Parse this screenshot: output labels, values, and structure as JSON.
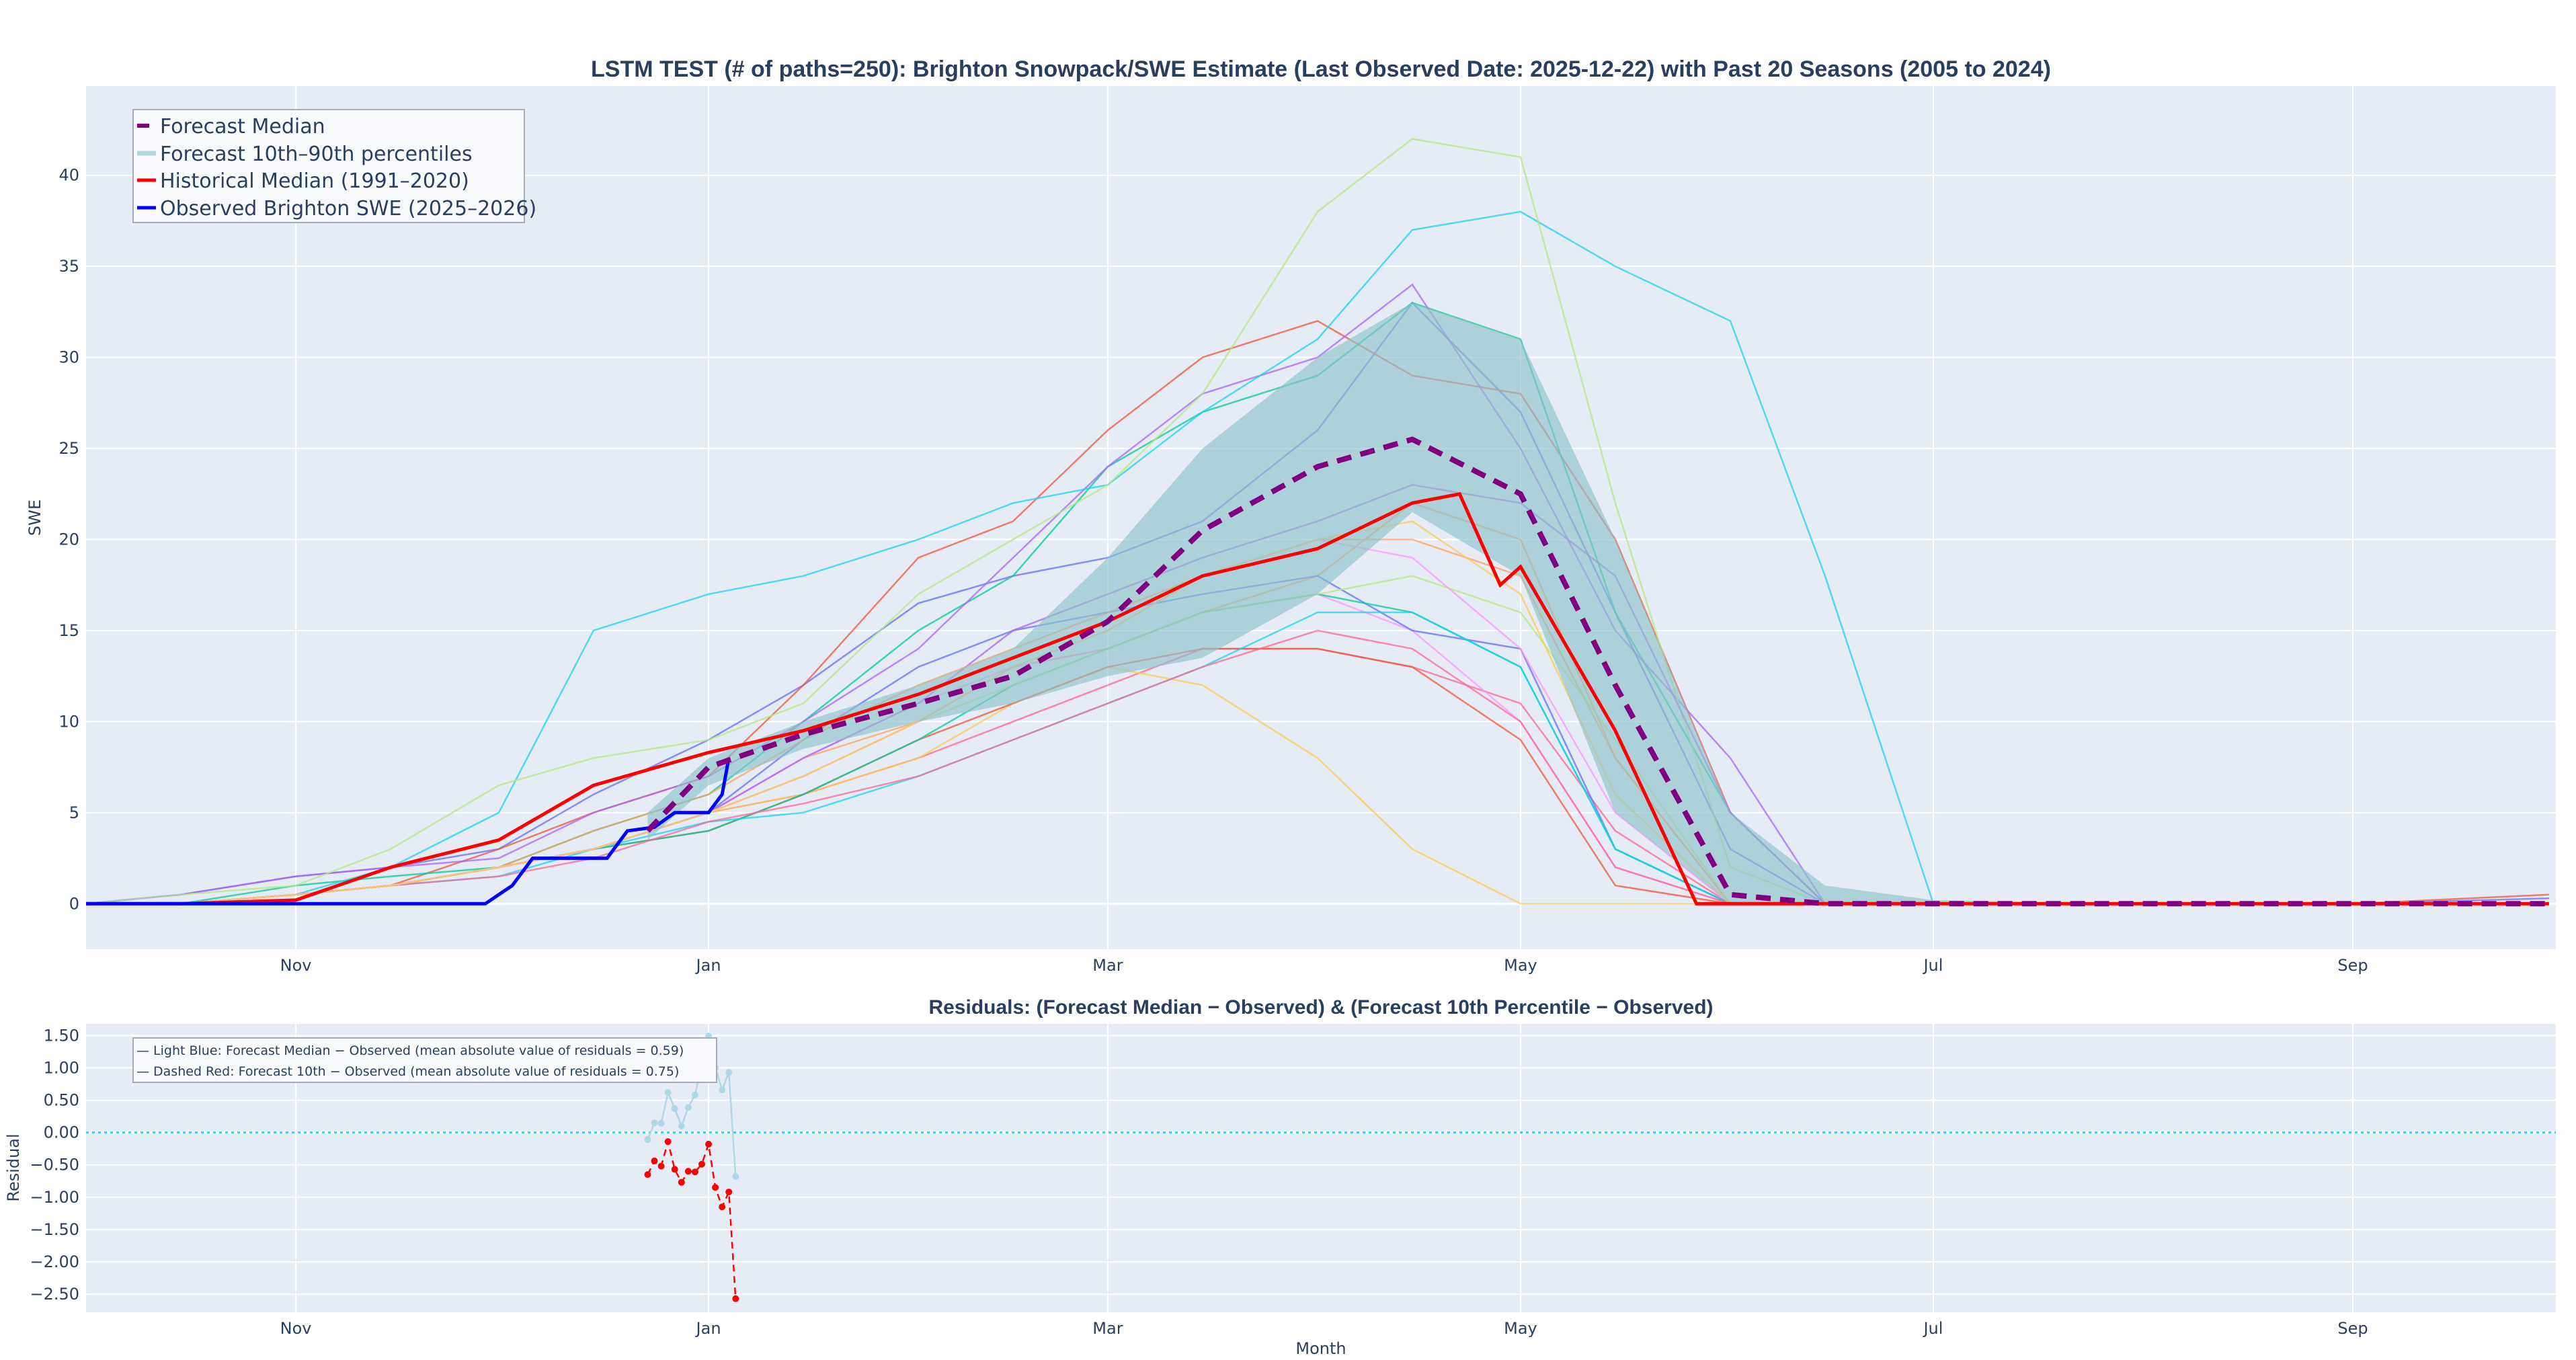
{
  "chart_data": [
    {
      "type": "line",
      "title": "LSTM TEST (# of paths=250): Brighton Snowpack/SWE Estimate (Last Observed Date: 2025-12-22) with Past 20 Seasons (2005 to 2024)",
      "xlabel": "",
      "ylabel": "SWE",
      "xlim": [
        "2025-10-01",
        "2026-10-01"
      ],
      "ylim": [
        -2.5,
        44.9
      ],
      "x_ticks": [
        {
          "date": "2025-11-01",
          "label": "Nov"
        },
        {
          "date": "2026-01-01",
          "label": "Jan"
        },
        {
          "date": "2026-03-01",
          "label": "Mar"
        },
        {
          "date": "2026-05-01",
          "label": "May"
        },
        {
          "date": "2026-07-01",
          "label": "Jul"
        },
        {
          "date": "2026-09-01",
          "label": "Sep"
        }
      ],
      "y_ticks": [
        "0",
        "5",
        "10",
        "15",
        "20",
        "25",
        "30",
        "35",
        "40"
      ],
      "y_tick_values": [
        0,
        5,
        10,
        15,
        20,
        25,
        30,
        35,
        40
      ],
      "grid": true,
      "legend_placement": "top-left",
      "legend": [
        {
          "label": "Forecast Median",
          "color": "#800080",
          "style": "dash"
        },
        {
          "label": "Forecast 10th–90th percentiles",
          "color": "#b0d8dc",
          "style": "band"
        },
        {
          "label": "Historical Median (1991–2020)",
          "color": "#ff0000",
          "style": "solid"
        },
        {
          "label": "Observed Brighton SWE (2025–2026)",
          "color": "#0000ff",
          "style": "solid"
        }
      ],
      "past_seasons_x": [
        "2025-10-01",
        "2025-10-15",
        "2025-11-01",
        "2025-11-15",
        "2025-12-01",
        "2025-12-15",
        "2026-01-01",
        "2026-01-15",
        "2026-02-01",
        "2026-02-15",
        "2026-03-01",
        "2026-03-15",
        "2026-04-01",
        "2026-04-15",
        "2026-05-01",
        "2026-05-15",
        "2026-06-01",
        "2026-06-15",
        "2026-07-01",
        "2026-08-01",
        "2026-09-01",
        "2026-09-30"
      ],
      "past_seasons": [
        {
          "color": "#636efa",
          "values": [
            0,
            0.5,
            1.5,
            2,
            3,
            6,
            9,
            12,
            16.5,
            18,
            19,
            21,
            26,
            33,
            27,
            16,
            3,
            0,
            0,
            0,
            0,
            0
          ]
        },
        {
          "color": "#EF553B",
          "values": [
            0,
            0,
            0.5,
            1,
            3,
            5,
            7,
            12,
            19,
            21,
            26,
            30,
            32,
            29,
            28,
            20,
            5,
            0,
            0,
            0,
            0,
            0.5
          ]
        },
        {
          "color": "#00cc96",
          "values": [
            0,
            0,
            1,
            1.5,
            2,
            4,
            6,
            10,
            15,
            18,
            24,
            27,
            29,
            33,
            31,
            16,
            5,
            0,
            0,
            0,
            0,
            0
          ]
        },
        {
          "color": "#ab63fa",
          "values": [
            0,
            0.5,
            1.5,
            2,
            2.5,
            5,
            7,
            10,
            14,
            19,
            24,
            28,
            30,
            34,
            25,
            15,
            8,
            0,
            0,
            0,
            0,
            0
          ]
        },
        {
          "color": "#FFA15A",
          "values": [
            0,
            0,
            0.5,
            1,
            2,
            3,
            5,
            8,
            10,
            13,
            14,
            16,
            18,
            22,
            20,
            8,
            0,
            0,
            0,
            0,
            0,
            0
          ]
        },
        {
          "color": "#19d3f3",
          "values": [
            0,
            0,
            0.5,
            2,
            5,
            15,
            17,
            18,
            20,
            22,
            23,
            27,
            31,
            37,
            38,
            35,
            32,
            18,
            0,
            0,
            0,
            0
          ]
        },
        {
          "color": "#FF6692",
          "values": [
            0,
            0,
            0.5,
            1,
            2,
            3,
            5,
            6,
            8,
            10,
            12,
            14,
            14,
            13,
            11,
            4,
            0,
            0,
            0,
            0,
            0,
            0
          ]
        },
        {
          "color": "#B6E880",
          "values": [
            0,
            0.5,
            1,
            3,
            6.5,
            8,
            9,
            11,
            17,
            20,
            23,
            28,
            38,
            42,
            41,
            22,
            2,
            0,
            0,
            0,
            0,
            0
          ]
        },
        {
          "color": "#FF97FF",
          "values": [
            0,
            0,
            0.5,
            1,
            2,
            3,
            5,
            8,
            11,
            13,
            14,
            16,
            17,
            15,
            10,
            2,
            0,
            0,
            0,
            0,
            0,
            0
          ]
        },
        {
          "color": "#FECB52",
          "values": [
            0,
            0,
            0.5,
            1,
            2,
            3,
            5,
            6,
            8,
            11,
            13,
            12,
            8,
            3,
            0,
            0,
            0,
            0,
            0,
            0,
            0,
            0
          ]
        },
        {
          "color": "#636efa",
          "values": [
            0,
            0,
            0.5,
            1,
            2,
            3,
            5,
            9,
            13,
            15,
            16,
            17,
            18,
            15,
            14,
            3,
            0,
            0,
            0,
            0,
            0,
            0.3
          ]
        },
        {
          "color": "#EF553B",
          "values": [
            0,
            0,
            0.5,
            1,
            2,
            3,
            4,
            6,
            9,
            11,
            13,
            14,
            14,
            13,
            9,
            1,
            0,
            0,
            0,
            0,
            0,
            0
          ]
        },
        {
          "color": "#00cc96",
          "values": [
            0,
            0,
            0.5,
            1,
            2,
            3,
            4,
            6,
            9,
            12,
            14,
            16,
            17,
            16,
            13,
            3,
            0,
            0,
            0,
            0,
            0,
            0
          ]
        },
        {
          "color": "#ab63fa",
          "values": [
            0,
            0,
            0.5,
            1,
            2,
            3,
            5,
            8,
            11,
            15,
            17,
            19,
            21,
            23,
            22,
            18,
            5,
            0,
            0,
            0,
            0,
            0
          ]
        },
        {
          "color": "#FFA15A",
          "values": [
            0,
            0,
            0.5,
            1,
            2,
            4,
            6,
            9,
            12,
            14,
            16,
            18,
            20,
            20,
            18,
            8,
            0,
            0,
            0,
            0,
            0,
            0
          ]
        },
        {
          "color": "#19d3f3",
          "values": [
            0,
            0,
            0.5,
            1,
            1.5,
            3,
            4.5,
            5,
            7,
            9,
            11,
            13,
            16,
            16,
            13,
            3,
            0,
            0,
            0,
            0,
            0,
            0
          ]
        },
        {
          "color": "#FF6692",
          "values": [
            0,
            0,
            0.5,
            1,
            1.5,
            2.5,
            4.5,
            5.5,
            7,
            9,
            11,
            13,
            15,
            14,
            10,
            2,
            0,
            0,
            0,
            0,
            0,
            0
          ]
        },
        {
          "color": "#B6E880",
          "values": [
            0,
            0,
            0.5,
            1,
            2,
            3,
            5,
            7,
            10,
            12,
            14,
            16,
            17,
            18,
            16,
            9,
            0,
            0,
            0,
            0,
            0,
            0
          ]
        },
        {
          "color": "#FF97FF",
          "values": [
            0,
            0,
            0.5,
            1,
            2,
            3,
            5,
            7,
            10,
            13,
            15,
            18,
            20,
            19,
            14,
            5,
            0,
            0,
            0,
            0,
            0,
            0
          ]
        },
        {
          "color": "#FECB52",
          "values": [
            0,
            0,
            0.5,
            1,
            2,
            3,
            5,
            7,
            10,
            13,
            15,
            18,
            20,
            21,
            17,
            6,
            0,
            0,
            0,
            0,
            0,
            0
          ]
        }
      ],
      "historical_median": {
        "name": "Historical Median (1991–2020)",
        "x": [
          "2025-10-01",
          "2025-10-15",
          "2025-11-01",
          "2025-11-15",
          "2025-12-01",
          "2025-12-15",
          "2026-01-01",
          "2026-01-15",
          "2026-02-01",
          "2026-02-15",
          "2026-03-01",
          "2026-03-15",
          "2026-04-01",
          "2026-04-15",
          "2026-04-22",
          "2026-04-28",
          "2026-05-01",
          "2026-05-15",
          "2026-05-27",
          "2026-06-15",
          "2026-07-01",
          "2026-08-01",
          "2026-09-01",
          "2026-09-30"
        ],
        "y": [
          0,
          0,
          0.2,
          2,
          3.5,
          6.5,
          8.3,
          9.5,
          11.5,
          13.5,
          15.5,
          18,
          19.5,
          22,
          22.5,
          17.5,
          18.5,
          9.5,
          0,
          0,
          0,
          0,
          0,
          0
        ]
      },
      "observed": {
        "name": "Observed Brighton SWE (2025–2026)",
        "x": [
          "2025-10-01",
          "2025-11-29",
          "2025-12-03",
          "2025-12-06",
          "2025-12-17",
          "2025-12-20",
          "2025-12-24",
          "2025-12-27",
          "2026-01-01",
          "2026-01-03",
          "2026-01-04"
        ],
        "y": [
          0,
          0,
          1,
          2.5,
          2.5,
          4,
          4.2,
          5,
          5,
          6,
          8
        ]
      },
      "forecast": {
        "x": [
          "2025-12-23",
          "2026-01-01",
          "2026-01-15",
          "2026-02-01",
          "2026-02-15",
          "2026-03-01",
          "2026-03-15",
          "2026-04-01",
          "2026-04-15",
          "2026-05-01",
          "2026-05-15",
          "2026-06-01",
          "2026-06-15",
          "2026-07-01",
          "2026-08-01",
          "2026-09-01",
          "2026-09-30"
        ],
        "median": [
          4,
          7.5,
          9.3,
          11,
          12.5,
          15.5,
          20.5,
          24,
          25.5,
          22.5,
          12,
          0.5,
          0,
          0,
          0,
          0,
          0
        ],
        "p10": [
          3.5,
          6.5,
          8.5,
          10,
          11,
          12.5,
          13.5,
          17,
          21.5,
          18,
          5,
          0,
          0,
          0,
          0,
          0,
          0
        ],
        "p90": [
          5,
          8,
          10,
          12,
          14,
          19,
          25,
          30,
          33,
          31,
          20,
          5,
          1,
          0.2,
          0,
          0,
          0
        ]
      }
    },
    {
      "type": "line",
      "title": "Residuals: (Forecast Median − Observed) & (Forecast 10th Percentile − Observed)",
      "xlabel": "Month",
      "ylabel": "Residual",
      "xlim": [
        "2025-10-01",
        "2026-10-01"
      ],
      "ylim": [
        -2.78,
        1.68
      ],
      "x_ticks": [
        {
          "date": "2025-11-01",
          "label": "Nov"
        },
        {
          "date": "2026-01-01",
          "label": "Jan"
        },
        {
          "date": "2026-03-01",
          "label": "Mar"
        },
        {
          "date": "2026-05-01",
          "label": "May"
        },
        {
          "date": "2026-07-01",
          "label": "Jul"
        },
        {
          "date": "2026-09-01",
          "label": "Sep"
        }
      ],
      "y_ticks": [
        "1.50",
        "1.00",
        "0.50",
        "0.00",
        "−0.50",
        "−1.00",
        "−1.50",
        "−2.00",
        "−2.50"
      ],
      "y_tick_values": [
        1.5,
        1.0,
        0.5,
        0,
        -0.5,
        -1.0,
        -1.5,
        -2.0,
        -2.5
      ],
      "grid": true,
      "zero_line_color": "#00e5ff",
      "legend_placement": "top-left",
      "legend": [
        {
          "label": "— Light Blue: Forecast Median − Observed (mean absolute value of residuals = 0.59)"
        },
        {
          "label": "— Dashed Red: Forecast 10th − Observed (mean absolute value of residuals = 0.75)"
        }
      ],
      "x": [
        "2025-12-23",
        "2025-12-24",
        "2025-12-25",
        "2025-12-26",
        "2025-12-27",
        "2025-12-28",
        "2025-12-29",
        "2025-12-30",
        "2025-12-31",
        "2026-01-01",
        "2026-01-02",
        "2026-01-03",
        "2026-01-04",
        "2026-01-05"
      ],
      "series": [
        {
          "color": "#add8e6",
          "style": "solid",
          "values": [
            -0.11,
            0.15,
            0.14,
            0.62,
            0.37,
            0.1,
            0.39,
            0.58,
            1.05,
            1.49,
            1.0,
            0.66,
            0.93,
            -0.68
          ]
        },
        {
          "color": "#ff0000",
          "style": "dash",
          "values": [
            -0.65,
            -0.44,
            -0.52,
            -0.14,
            -0.57,
            -0.77,
            -0.6,
            -0.61,
            -0.49,
            -0.18,
            -0.85,
            -1.15,
            -0.92,
            -2.57
          ]
        }
      ]
    }
  ]
}
